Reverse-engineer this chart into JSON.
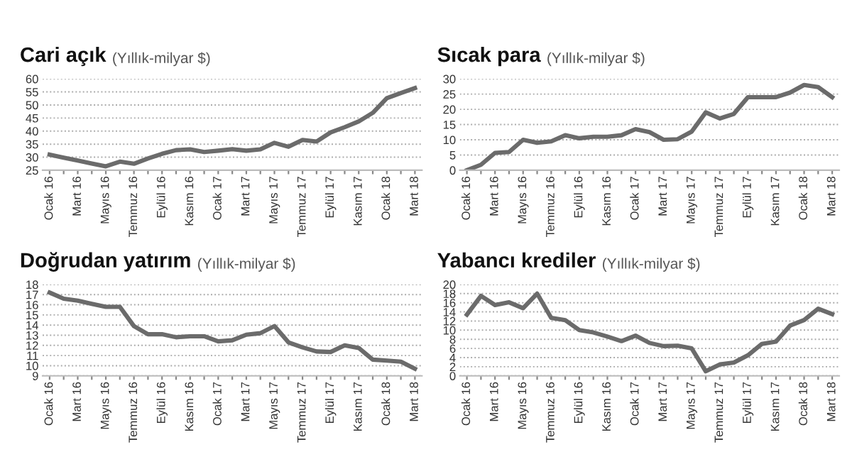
{
  "chart_data": [
    {
      "type": "line",
      "title": "Cari açık",
      "subtitle": "(Yıllık-milyar $)",
      "categories": [
        "Ocak 16",
        null,
        "Mart 16",
        null,
        "Mayıs 16",
        null,
        "Temmuz 16",
        null,
        "Eylül 16",
        null,
        "Kasım 16",
        null,
        "Ocak 17",
        null,
        "Mart 17",
        null,
        "Mayıs 17",
        null,
        "Temmuz 17",
        null,
        "Eylül 17",
        null,
        "Kasım 17",
        null,
        "Ocak 18",
        null,
        "Mart 18"
      ],
      "series": [
        {
          "color": "#6b6b6b",
          "values": [
            31,
            29.8,
            28.7,
            27.6,
            26.5,
            28.3,
            27.5,
            29.5,
            31.3,
            32.7,
            33,
            32,
            32.5,
            33.1,
            32.5,
            33,
            35.5,
            34,
            36.6,
            36,
            39.5,
            41.5,
            43.7,
            47,
            52.6,
            54.6,
            56.5
          ]
        }
      ],
      "ylim": [
        25,
        60
      ],
      "yticks": [
        25,
        30,
        35,
        40,
        45,
        50,
        55,
        60
      ],
      "grid": "y",
      "line_style": "solid",
      "marker": "none"
    },
    {
      "type": "line",
      "title": "Sıcak para",
      "subtitle": "(Yıllık-milyar $)",
      "categories": [
        "Ocak 16",
        null,
        "Mart 16",
        null,
        "Mayıs 16",
        null,
        "Temmuz 16",
        null,
        "Eylül 16",
        null,
        "Kasım 16",
        null,
        "Ocak 17",
        null,
        "Mart 17",
        null,
        "Mayıs 17",
        null,
        "Temmuz 17",
        null,
        "Eylül 17",
        null,
        "Kasım 17",
        null,
        "Ocak 18",
        null,
        "Mart 18"
      ],
      "series": [
        {
          "color": "#6b6b6b",
          "values": [
            0,
            1.8,
            5.7,
            6,
            10,
            9,
            9.5,
            11.5,
            10.5,
            11,
            11,
            11.5,
            13.5,
            12.5,
            10,
            10.2,
            12.7,
            19,
            17,
            18.5,
            24,
            24,
            24,
            25.5,
            28,
            27.3,
            24
          ]
        }
      ],
      "ylim": [
        0,
        30
      ],
      "yticks": [
        0,
        5,
        10,
        15,
        20,
        25,
        30
      ],
      "grid": "y",
      "line_style": "solid",
      "marker": "none"
    },
    {
      "type": "line",
      "title": "Doğrudan yatırım",
      "subtitle": "(Yıllık-milyar $)",
      "categories": [
        "Ocak 16",
        null,
        "Mart 16",
        null,
        "Mayıs 16",
        null,
        "Temmuz 16",
        null,
        "Eylül 16",
        null,
        "Kasım 16",
        null,
        "Ocak 17",
        null,
        "Mart 17",
        null,
        "Mayıs 17",
        null,
        "Temmuz 17",
        null,
        "Eylül 17",
        null,
        "Kasım 17",
        null,
        "Ocak 18",
        null,
        "Mart 18"
      ],
      "series": [
        {
          "color": "#6b6b6b",
          "values": [
            17.2,
            16.6,
            16.4,
            16.1,
            15.8,
            15.8,
            13.9,
            13.1,
            13.1,
            12.8,
            12.9,
            12.9,
            12.4,
            12.5,
            13.05,
            13.2,
            13.9,
            12.3,
            11.8,
            11.4,
            11.35,
            12,
            11.75,
            10.6,
            10.5,
            10.4,
            9.7
          ]
        }
      ],
      "ylim": [
        9,
        18
      ],
      "yticks": [
        9,
        10,
        11,
        12,
        13,
        14,
        15,
        16,
        17,
        18
      ],
      "grid": "y",
      "line_style": "solid",
      "marker": "none"
    },
    {
      "type": "line",
      "title": "Yabancı krediler",
      "subtitle": "(Yıllık-milyar $)",
      "categories": [
        "Ocak 16",
        null,
        "Mart 16",
        null,
        "Mayıs 16",
        null,
        "Temmuz 16",
        null,
        "Eylül 16",
        null,
        "Kasım 16",
        null,
        "Ocak 17",
        null,
        "Mart 17",
        null,
        "Mayıs 17",
        null,
        "Temmuz 17",
        null,
        "Eylül 17",
        null,
        "Kasım 17",
        null,
        "Ocak 18",
        null,
        "Mart 18"
      ],
      "series": [
        {
          "color": "#6b6b6b",
          "values": [
            13.4,
            17.5,
            15.5,
            16.1,
            14.8,
            18,
            12.7,
            12.2,
            10,
            9.5,
            8.6,
            7.6,
            8.8,
            7.2,
            6.5,
            6.6,
            6,
            1,
            2.5,
            2.9,
            4.5,
            7,
            7.5,
            11,
            12.2,
            14.7,
            13.5
          ]
        }
      ],
      "ylim": [
        0,
        20
      ],
      "yticks": [
        0,
        2,
        4,
        6,
        8,
        10,
        12,
        14,
        16,
        18,
        20
      ],
      "grid": "y",
      "line_style": "solid",
      "marker": "none"
    }
  ]
}
